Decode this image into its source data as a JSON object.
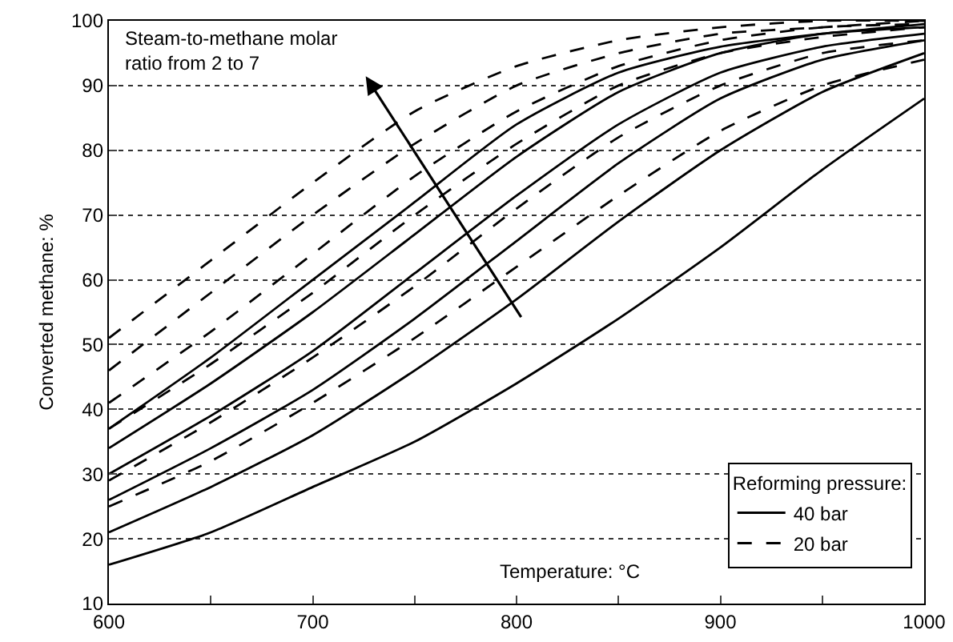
{
  "chart_data": {
    "type": "line",
    "xlabel": "Temperature: °C",
    "ylabel": "Converted methane: %",
    "legend_title": "Reforming pressure:",
    "annotations": [
      "Steam-to-methane molar ratio from 2 to 7"
    ],
    "x": [
      600,
      650,
      700,
      750,
      800,
      850,
      900,
      950,
      1000
    ],
    "xlim": [
      600,
      1000
    ],
    "xticks": [
      600,
      {
        "value": 650,
        "label": null
      },
      700,
      {
        "value": 750,
        "label": null
      },
      800,
      {
        "value": 850,
        "label": null
      },
      900,
      {
        "value": 950,
        "label": null
      },
      1000
    ],
    "ylim": [
      10,
      100
    ],
    "yticks": [
      10,
      20,
      30,
      40,
      50,
      60,
      70,
      80,
      90,
      100
    ],
    "grid": "y",
    "legend": "bottom right",
    "marker": "none",
    "series": [
      {
        "name": "40 bar",
        "color": "#000000",
        "line_style": "solid",
        "values": [
          16,
          21,
          28,
          35,
          44,
          54,
          65,
          77,
          88
        ]
      },
      {
        "color": "#000000",
        "line_style": "solid",
        "values": [
          21,
          28,
          36,
          46,
          57,
          69,
          80,
          89,
          95
        ]
      },
      {
        "color": "#000000",
        "line_style": "solid",
        "values": [
          26,
          34,
          43,
          54,
          66,
          78,
          88,
          94,
          97
        ]
      },
      {
        "color": "#000000",
        "line_style": "solid",
        "values": [
          30,
          39,
          49,
          61,
          73,
          84,
          92,
          96,
          98
        ]
      },
      {
        "color": "#000000",
        "line_style": "solid",
        "values": [
          34,
          44,
          55,
          67,
          79,
          89,
          95,
          98,
          99
        ]
      },
      {
        "color": "#000000",
        "line_style": "solid",
        "values": [
          37,
          48,
          60,
          72,
          84,
          92,
          96,
          98,
          99.5
        ]
      },
      {
        "name": "20 bar",
        "color": "#000000",
        "line_style": "dashed",
        "values": [
          25,
          32,
          41,
          51,
          62,
          73,
          83,
          90,
          94
        ]
      },
      {
        "color": "#000000",
        "line_style": "dashed",
        "values": [
          29,
          38,
          48,
          59,
          71,
          82,
          90,
          95,
          97
        ]
      },
      {
        "color": "#000000",
        "line_style": "dashed",
        "values": [
          37,
          47,
          58,
          70,
          81,
          90,
          95,
          97.5,
          99
        ]
      },
      {
        "color": "#000000",
        "line_style": "dashed",
        "values": [
          41,
          52,
          64,
          76,
          86,
          93,
          97,
          99,
          99.5
        ]
      },
      {
        "color": "#000000",
        "line_style": "dashed",
        "values": [
          46,
          58,
          70,
          81,
          90,
          95,
          98,
          99,
          100
        ]
      },
      {
        "color": "#000000",
        "line_style": "dashed",
        "values": [
          51,
          63,
          75,
          86,
          93,
          97,
          99,
          100,
          100
        ]
      }
    ]
  }
}
